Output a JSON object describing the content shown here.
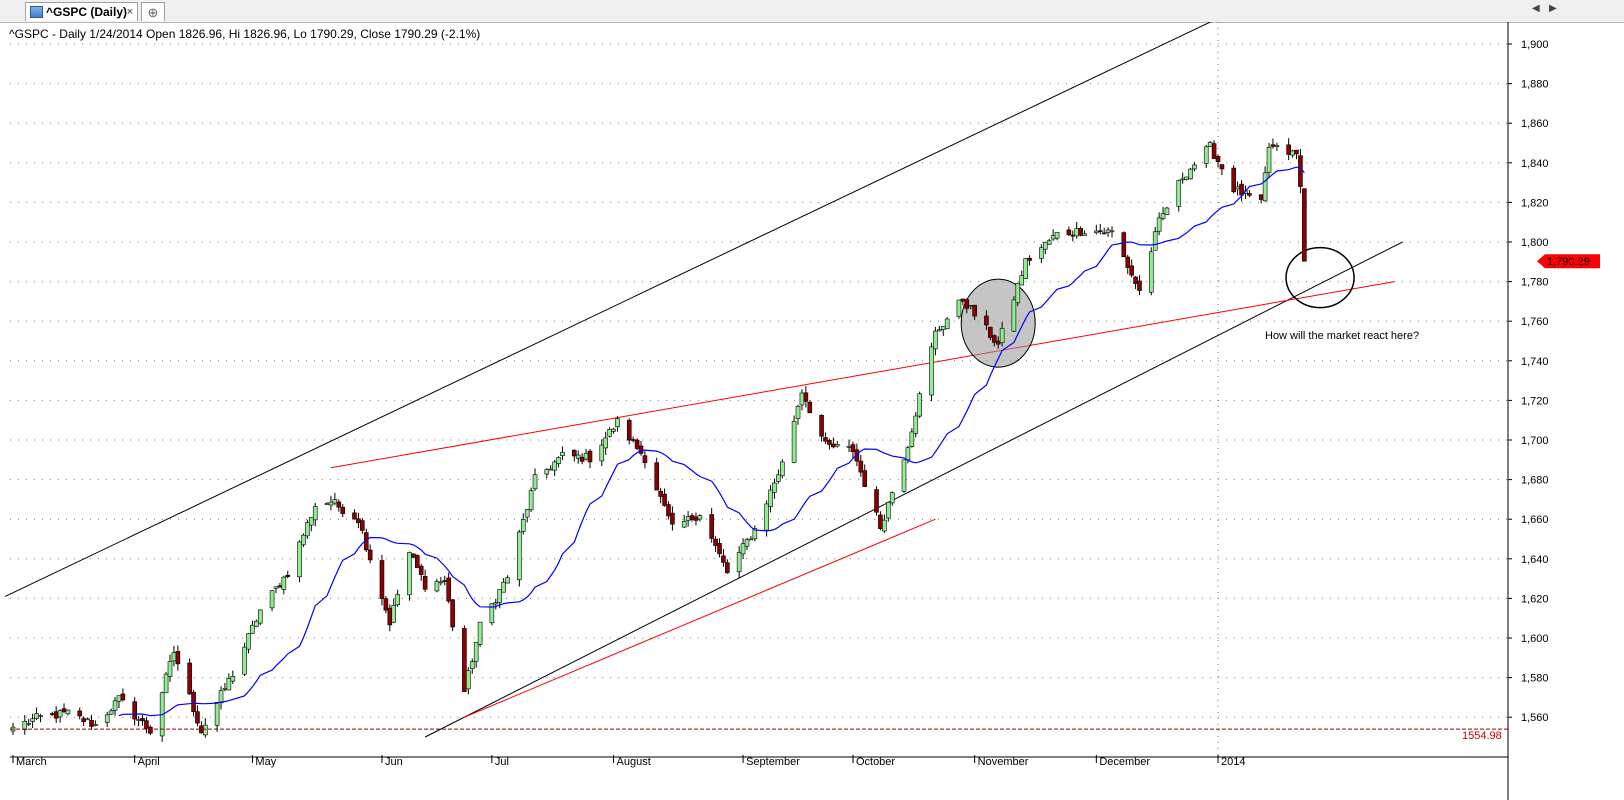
{
  "tabs": {
    "active_label": "^GSPC (Daily)",
    "close_glyph": "×",
    "new_glyph": "⊕",
    "icon": "chart-icon"
  },
  "nav": {
    "left": "◀",
    "right": "▶"
  },
  "chart_info": "^GSPC - Daily 1/24/2014 Open 1826.96, Hi 1826.96, Lo 1790.29, Close 1790.29 (-2.1%)",
  "annotation": "How will the market react here?",
  "chart_data": {
    "type": "candlestick",
    "symbol": "^GSPC",
    "interval": "Daily",
    "ylim": [
      1550,
      1910
    ],
    "y_ticks": [
      1560,
      1580,
      1600,
      1620,
      1640,
      1660,
      1680,
      1700,
      1720,
      1740,
      1760,
      1780,
      1800,
      1820,
      1840,
      1860,
      1880,
      1900
    ],
    "y_tick_labels": [
      "1,560",
      "1,580",
      "1,600",
      "1,620",
      "1,640",
      "1,660",
      "1,680",
      "1,700",
      "1,720",
      "1,740",
      "1,760",
      "1,780",
      "1,800",
      "1,820",
      "1,840",
      "1,860",
      "1,880",
      "1,900"
    ],
    "x_ticks": [
      {
        "date": "2013-03-01",
        "label": "March"
      },
      {
        "date": "2013-04-01",
        "label": "April"
      },
      {
        "date": "2013-05-01",
        "label": "May"
      },
      {
        "date": "2013-06-03",
        "label": "Jun"
      },
      {
        "date": "2013-07-01",
        "label": "Jul"
      },
      {
        "date": "2013-08-01",
        "label": "August"
      },
      {
        "date": "2013-09-03",
        "label": "September"
      },
      {
        "date": "2013-10-01",
        "label": "October"
      },
      {
        "date": "2013-11-01",
        "label": "November"
      },
      {
        "date": "2013-12-02",
        "label": "December"
      },
      {
        "date": "2014-01-02",
        "label": "2014"
      }
    ],
    "last_price_label": "1,790.29",
    "baseline_label": "1554.98",
    "baseline_value": 1554.98,
    "colors": {
      "up": "#90ee90",
      "down": "#8b0000",
      "ma": "#0000ff",
      "trend_black": "#000000",
      "trend_red": "#ff0000",
      "price_tag": "#ff0000"
    },
    "grid": "dotted",
    "close_keypoints": [
      [
        "2013-03-01",
        1555
      ],
      [
        "2013-03-08",
        1560
      ],
      [
        "2013-03-15",
        1562
      ],
      [
        "2013-03-22",
        1556
      ],
      [
        "2013-03-28",
        1569
      ],
      [
        "2013-04-05",
        1553
      ],
      [
        "2013-04-11",
        1593
      ],
      [
        "2013-04-18",
        1553
      ],
      [
        "2013-04-26",
        1582
      ],
      [
        "2013-05-03",
        1614
      ],
      [
        "2013-05-10",
        1633
      ],
      [
        "2013-05-17",
        1667
      ],
      [
        "2013-05-21",
        1669
      ],
      [
        "2013-05-28",
        1660
      ],
      [
        "2013-06-05",
        1608
      ],
      [
        "2013-06-10",
        1643
      ],
      [
        "2013-06-14",
        1627
      ],
      [
        "2013-06-19",
        1629
      ],
      [
        "2013-06-24",
        1573
      ],
      [
        "2013-06-28",
        1606
      ],
      [
        "2013-07-05",
        1631
      ],
      [
        "2013-07-12",
        1680
      ],
      [
        "2013-07-19",
        1692
      ],
      [
        "2013-07-26",
        1691
      ],
      [
        "2013-08-02",
        1709
      ],
      [
        "2013-08-09",
        1691
      ],
      [
        "2013-08-16",
        1655
      ],
      [
        "2013-08-23",
        1663
      ],
      [
        "2013-08-30",
        1633
      ],
      [
        "2013-09-06",
        1655
      ],
      [
        "2013-09-13",
        1688
      ],
      [
        "2013-09-18",
        1725
      ],
      [
        "2013-09-24",
        1697
      ],
      [
        "2013-10-01",
        1695
      ],
      [
        "2013-10-08",
        1656
      ],
      [
        "2013-10-15",
        1698
      ],
      [
        "2013-10-22",
        1754
      ],
      [
        "2013-10-29",
        1771
      ],
      [
        "2013-11-07",
        1748
      ],
      [
        "2013-11-14",
        1790
      ],
      [
        "2013-11-22",
        1804
      ],
      [
        "2013-11-29",
        1806
      ],
      [
        "2013-12-06",
        1805
      ],
      [
        "2013-12-13",
        1775
      ],
      [
        "2013-12-18",
        1810
      ],
      [
        "2013-12-24",
        1833
      ],
      [
        "2013-12-31",
        1848
      ],
      [
        "2014-01-06",
        1827
      ],
      [
        "2014-01-13",
        1819
      ],
      [
        "2014-01-15",
        1848
      ],
      [
        "2014-01-22",
        1844
      ],
      [
        "2014-01-23",
        1828
      ],
      [
        "2014-01-24",
        1790.29
      ]
    ],
    "trendlines": [
      {
        "color": "black",
        "points": [
          [
            "2013-02-27",
            1621
          ],
          [
            "2014-01-01",
            1912
          ]
        ]
      },
      {
        "color": "black",
        "points": [
          [
            "2013-06-14",
            1550
          ],
          [
            "2014-02-18",
            1800
          ]
        ]
      },
      {
        "color": "red",
        "points": [
          [
            "2013-05-21",
            1686
          ],
          [
            "2014-02-16",
            1780
          ]
        ]
      },
      {
        "color": "red",
        "points": [
          [
            "2013-06-24",
            1560
          ],
          [
            "2013-10-22",
            1660
          ]
        ]
      }
    ],
    "circles": [
      {
        "date": "2013-11-07",
        "value": 1759,
        "fill": "gray"
      },
      {
        "date": "2014-01-28",
        "value": 1782,
        "fill": "none"
      }
    ]
  }
}
